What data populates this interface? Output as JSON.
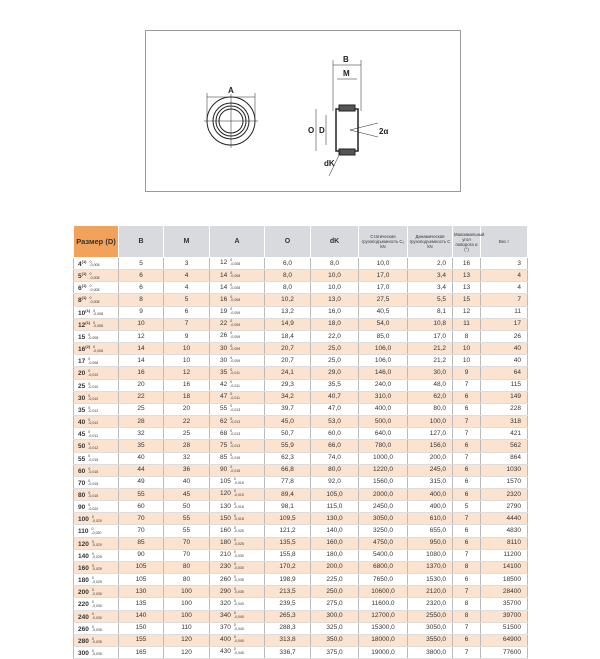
{
  "drawing": {
    "labels": {
      "A": "A",
      "B": "B",
      "M": "M",
      "O": "O",
      "D": "D",
      "alpha": "2α",
      "dK": "dK"
    }
  },
  "table": {
    "headers": {
      "size": "Размер (D)",
      "B": "B",
      "M": "M",
      "A": "A",
      "O": "O",
      "dK": "dK",
      "C0": "Статическая грузоподъемность C₀ kN",
      "C": "Динамическая грузоподъемность C kN",
      "alpha": "Максимальный угол поворота α (°)",
      "weight": "Вес г"
    },
    "rows": [
      [
        "4",
        "(1)",
        "-0,008",
        "5",
        "3",
        "12",
        "-0,008",
        "6,0",
        "8,0",
        "10,0",
        "2,0",
        "16",
        "3"
      ],
      [
        "5",
        "(1)",
        "-0,008",
        "6",
        "4",
        "14",
        "-0,008",
        "8,0",
        "10,0",
        "17,0",
        "3,4",
        "13",
        "4"
      ],
      [
        "6",
        "(1)",
        "-0,008",
        "6",
        "4",
        "14",
        "-0,008",
        "8,0",
        "10,0",
        "17,0",
        "3,4",
        "13",
        "4"
      ],
      [
        "8",
        "(1)",
        "-0,008",
        "8",
        "5",
        "16",
        "-0,008",
        "10,2",
        "13,0",
        "27,5",
        "5,5",
        "15",
        "7"
      ],
      [
        "10",
        "(1)",
        "-0,008",
        "9",
        "6",
        "19",
        "-0,009",
        "13,2",
        "16,0",
        "40,5",
        "8,1",
        "12",
        "11"
      ],
      [
        "12",
        "(1)",
        "-0,008",
        "10",
        "7",
        "22",
        "-0,009",
        "14,9",
        "18,0",
        "54,0",
        "10,8",
        "11",
        "17"
      ],
      [
        "15",
        "",
        "-0,008",
        "12",
        "9",
        "26",
        "-0,009",
        "18,4",
        "22,0",
        "85,0",
        "17,0",
        "8",
        "26"
      ],
      [
        "16",
        "(2)",
        "-0,008",
        "14",
        "10",
        "30",
        "-0,009",
        "20,7",
        "25,0",
        "106,0",
        "21,2",
        "10",
        "40"
      ],
      [
        "17",
        "",
        "-0,008",
        "14",
        "10",
        "30",
        "-0,009",
        "20,7",
        "25,0",
        "106,0",
        "21,2",
        "10",
        "40"
      ],
      [
        "20",
        "",
        "-0,010",
        "16",
        "12",
        "35",
        "-0,011",
        "24,1",
        "29,0",
        "146,0",
        "30,0",
        "9",
        "64"
      ],
      [
        "25",
        "",
        "-0,010",
        "20",
        "16",
        "42",
        "-0,011",
        "29,3",
        "35,5",
        "240,0",
        "48,0",
        "7",
        "115"
      ],
      [
        "30",
        "",
        "-0,010",
        "22",
        "18",
        "47",
        "-0,011",
        "34,2",
        "40,7",
        "310,0",
        "62,0",
        "6",
        "149"
      ],
      [
        "35",
        "",
        "-0,012",
        "25",
        "20",
        "55",
        "-0,013",
        "39,7",
        "47,0",
        "400,0",
        "80,0",
        "6",
        "228"
      ],
      [
        "40",
        "",
        "-0,012",
        "28",
        "22",
        "62",
        "-0,013",
        "45,0",
        "53,0",
        "500,0",
        "100,0",
        "7",
        "318"
      ],
      [
        "45",
        "",
        "-0,012",
        "32",
        "25",
        "68",
        "-0,013",
        "50,7",
        "60,0",
        "640,0",
        "127,0",
        "7",
        "421"
      ],
      [
        "50",
        "",
        "-0,012",
        "35",
        "28",
        "75",
        "-0,013",
        "55,9",
        "66,0",
        "780,0",
        "156,0",
        "6",
        "562"
      ],
      [
        "55",
        "",
        "-0,015",
        "40",
        "32",
        "85",
        "-0,015",
        "62,3",
        "74,0",
        "1000,0",
        "200,0",
        "7",
        "864"
      ],
      [
        "60",
        "",
        "-0,015",
        "44",
        "36",
        "90",
        "-0,015",
        "66,8",
        "80,0",
        "1220,0",
        "245,0",
        "6",
        "1030"
      ],
      [
        "70",
        "",
        "-0,015",
        "49",
        "40",
        "105",
        "-0,015",
        "77,8",
        "92,0",
        "1560,0",
        "315,0",
        "6",
        "1570"
      ],
      [
        "80",
        "",
        "-0,015",
        "55",
        "45",
        "120",
        "-0,015",
        "89,4",
        "105,0",
        "2000,0",
        "400,0",
        "6",
        "2320"
      ],
      [
        "90",
        "",
        "-0,020",
        "60",
        "50",
        "130",
        "-0,018",
        "98,1",
        "115,0",
        "2450,0",
        "490,0",
        "5",
        "2790"
      ],
      [
        "100",
        "",
        "-0,020",
        "70",
        "55",
        "150",
        "-0,018",
        "109,5",
        "130,0",
        "3050,0",
        "610,0",
        "7",
        "4440"
      ],
      [
        "110",
        "",
        "-0,020",
        "70",
        "55",
        "160",
        "-0,025",
        "121,2",
        "140,0",
        "3250,0",
        "655,0",
        "6",
        "4830"
      ],
      [
        "120",
        "",
        "-0,020",
        "85",
        "70",
        "180",
        "-0,025",
        "135,5",
        "160,0",
        "4750,0",
        "950,0",
        "6",
        "8110"
      ],
      [
        "140",
        "",
        "-0,025",
        "90",
        "70",
        "210",
        "-0,030",
        "155,8",
        "180,0",
        "5400,0",
        "1080,0",
        "7",
        "11200"
      ],
      [
        "160",
        "",
        "-0,025",
        "105",
        "80",
        "230",
        "-0,030",
        "170,2",
        "200,0",
        "6800,0",
        "1370,0",
        "8",
        "14100"
      ],
      [
        "180",
        "",
        "-0,025",
        "105",
        "80",
        "260",
        "-0,035",
        "198,9",
        "225,0",
        "7650,0",
        "1530,0",
        "6",
        "18500"
      ],
      [
        "200",
        "",
        "-0,030",
        "130",
        "100",
        "290",
        "-0,035",
        "213,5",
        "250,0",
        "10600,0",
        "2120,0",
        "7",
        "28400"
      ],
      [
        "220",
        "",
        "-0,030",
        "135",
        "100",
        "320",
        "-0,040",
        "239,5",
        "275,0",
        "11600,0",
        "2320,0",
        "8",
        "35700"
      ],
      [
        "240",
        "",
        "-0,030",
        "140",
        "100",
        "340",
        "-0,040",
        "265,3",
        "300,0",
        "12700,0",
        "2550,0",
        "8",
        "39700"
      ],
      [
        "260",
        "",
        "-0,035",
        "150",
        "110",
        "370",
        "-0,040",
        "288,3",
        "325,0",
        "15300,0",
        "3050,0",
        "7",
        "51500"
      ],
      [
        "280",
        "",
        "-0,035",
        "155",
        "120",
        "400",
        "-0,040",
        "313,8",
        "350,0",
        "18000,0",
        "3550,0",
        "6",
        "64900"
      ],
      [
        "300",
        "",
        "-0,035",
        "165",
        "120",
        "430",
        "-0,045",
        "336,7",
        "375,0",
        "19000,0",
        "3800,0",
        "7",
        "77600"
      ]
    ]
  },
  "colors": {
    "header": "#d9dade",
    "size_header": "#f3a25b",
    "stripe": "#fbe3cf"
  }
}
